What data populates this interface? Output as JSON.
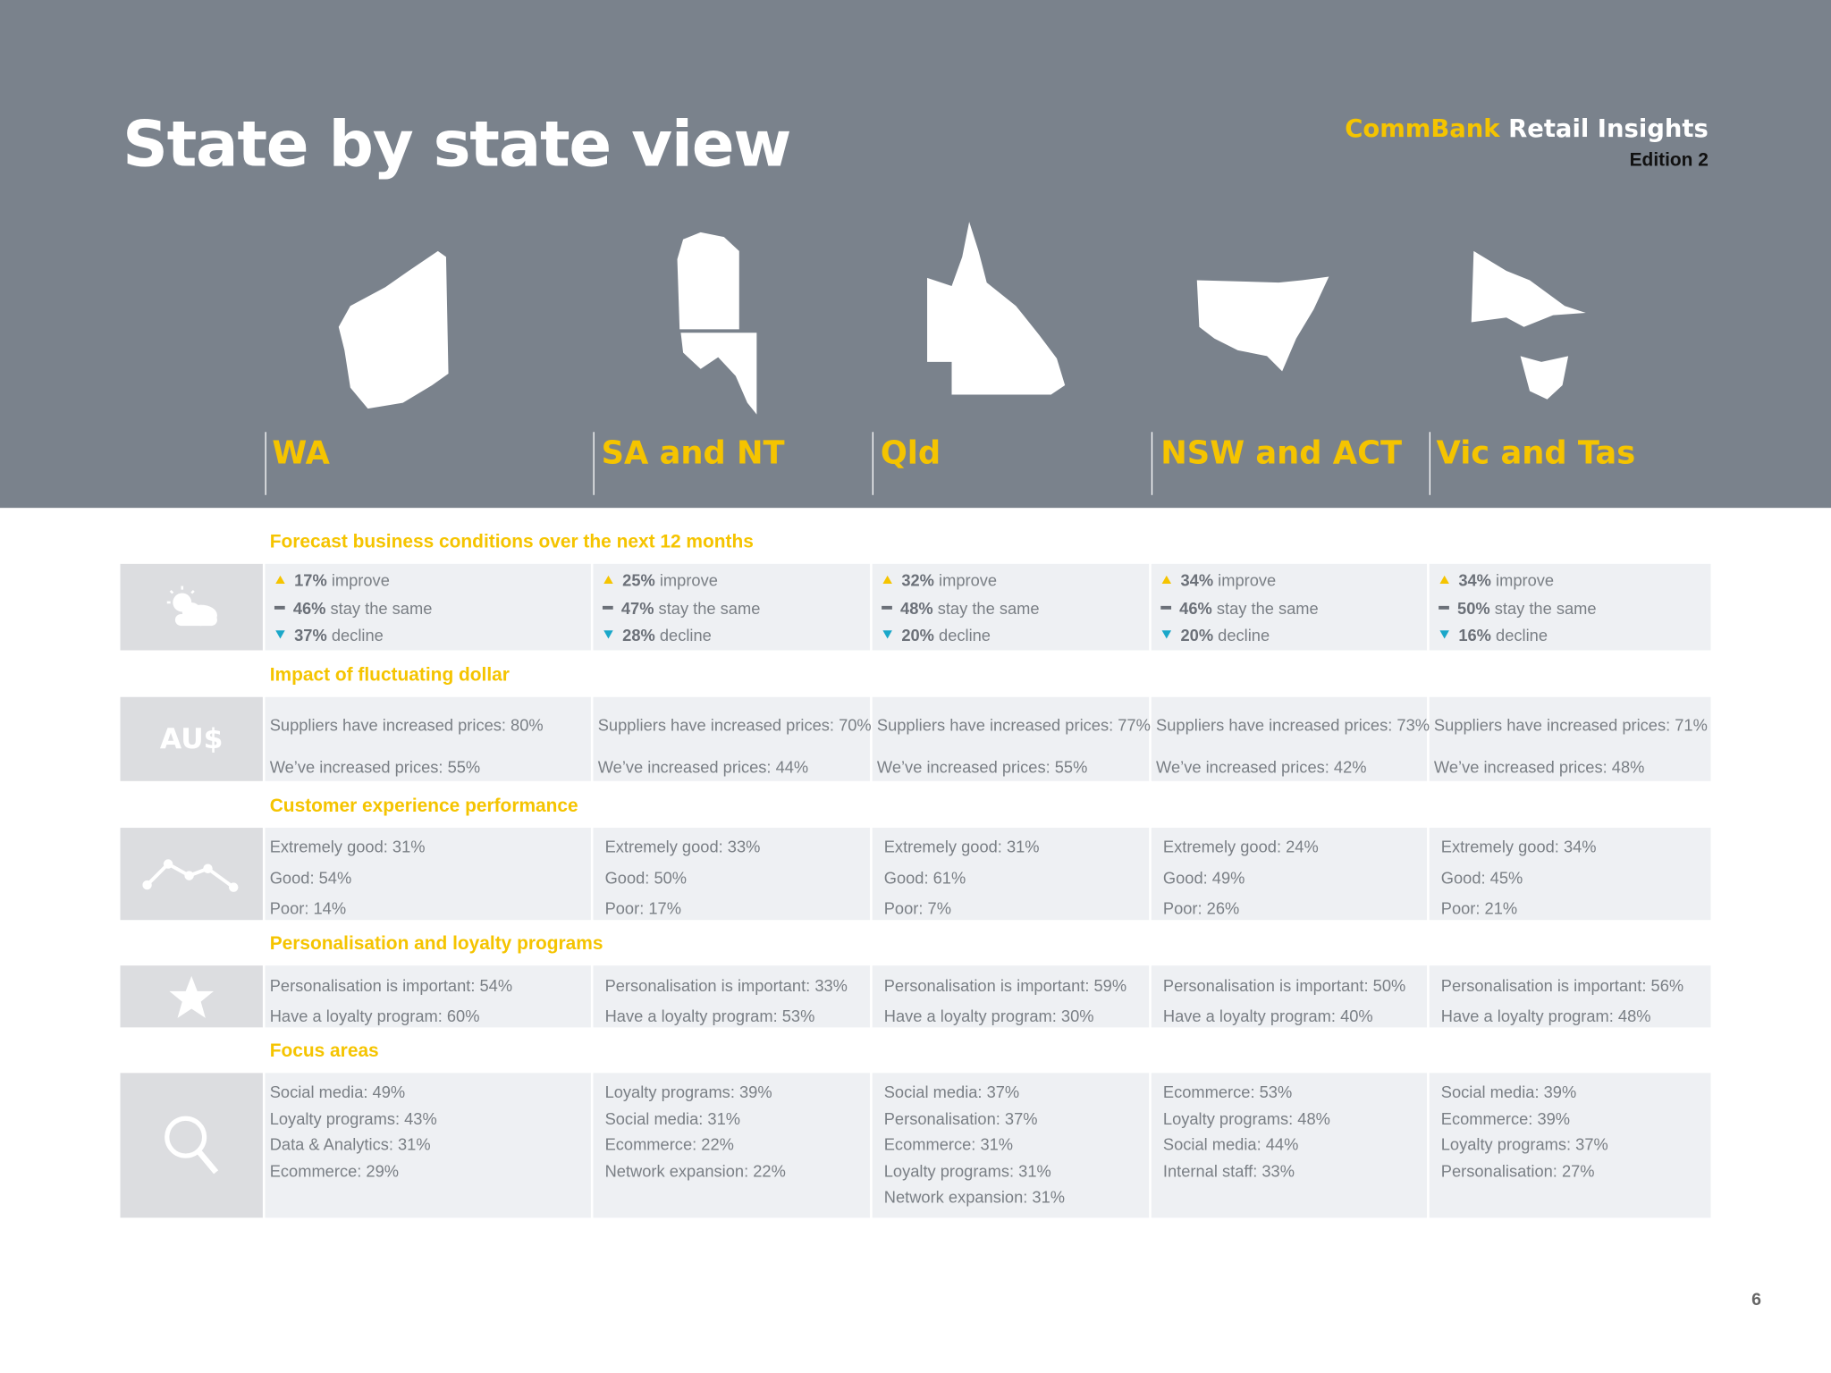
{
  "header": {
    "title": "State by state view",
    "brand": "CommBank",
    "brand_suffix": "Retail Insights",
    "edition": "Edition 2"
  },
  "states": [
    "WA",
    "SA and NT",
    "Qld",
    "NSW and ACT",
    "Vic and Tas"
  ],
  "icon_label": "AU$",
  "sections": [
    {
      "title": "Forecast business conditions over the next 12 months",
      "cells": [
        [
          {
            "value": "17%",
            "text": "improve"
          },
          {
            "value": "46%",
            "text": "stay the same"
          },
          {
            "value": "37%",
            "text": "decline"
          }
        ],
        [
          {
            "value": "25%",
            "text": "improve"
          },
          {
            "value": "47%",
            "text": "stay the same"
          },
          {
            "value": "28%",
            "text": "decline"
          }
        ],
        [
          {
            "value": "32%",
            "text": "improve"
          },
          {
            "value": "48%",
            "text": "stay the same"
          },
          {
            "value": "20%",
            "text": "decline"
          }
        ],
        [
          {
            "value": "34%",
            "text": "improve"
          },
          {
            "value": "46%",
            "text": "stay the same"
          },
          {
            "value": "20%",
            "text": "decline"
          }
        ],
        [
          {
            "value": "34%",
            "text": "improve"
          },
          {
            "value": "50%",
            "text": "stay the same"
          },
          {
            "value": "16%",
            "text": "decline"
          }
        ]
      ]
    },
    {
      "title": "Impact of fluctuating dollar",
      "cells": [
        [
          "Suppliers have increased prices: 80%",
          "We’ve increased prices: 55%"
        ],
        [
          "Suppliers have increased prices: 70%",
          "We’ve increased prices: 44%"
        ],
        [
          "Suppliers have increased prices: 77%",
          "We’ve increased prices: 55%"
        ],
        [
          "Suppliers have increased prices: 73%",
          "We’ve increased prices: 42%"
        ],
        [
          "Suppliers have increased prices: 71%",
          "We’ve increased prices: 48%"
        ]
      ]
    },
    {
      "title": "Customer experience performance",
      "cells": [
        [
          "Extremely good: 31%",
          "Good: 54%",
          "Poor: 14%"
        ],
        [
          "Extremely good: 33%",
          "Good: 50%",
          "Poor: 17%"
        ],
        [
          "Extremely good: 31%",
          "Good: 61%",
          "Poor: 7%"
        ],
        [
          "Extremely good: 24%",
          "Good: 49%",
          "Poor: 26%"
        ],
        [
          "Extremely good: 34%",
          "Good: 45%",
          "Poor: 21%"
        ]
      ]
    },
    {
      "title": "Personalisation and loyalty programs",
      "cells": [
        [
          "Personalisation is important: 54%",
          "Have a loyalty program: 60%"
        ],
        [
          "Personalisation is important: 33%",
          "Have a loyalty program: 53%"
        ],
        [
          "Personalisation is important: 59%",
          "Have a loyalty program: 30%"
        ],
        [
          "Personalisation is important: 50%",
          "Have a loyalty program: 40%"
        ],
        [
          "Personalisation is important: 56%",
          "Have a loyalty program: 48%"
        ]
      ]
    },
    {
      "title": "Focus areas",
      "cells": [
        [
          "Social media: 49%",
          "Loyalty programs: 43%",
          "Data & Analytics: 31%",
          "Ecommerce: 29%"
        ],
        [
          "Loyalty programs: 39%",
          "Social media: 31%",
          "Ecommerce: 22%",
          "Network expansion: 22%"
        ],
        [
          "Social media: 37%",
          "Personalisation: 37%",
          "Ecommerce: 31%",
          "Loyalty programs: 31%",
          "Network expansion: 31%"
        ],
        [
          "Ecommerce: 53%",
          "Loyalty programs: 48%",
          "Social media: 44%",
          "Internal staff: 33%"
        ],
        [
          "Social media: 39%",
          "Ecommerce: 39%",
          "Loyalty programs: 37%",
          "Personalisation: 27%"
        ]
      ]
    }
  ],
  "page_number": "6"
}
